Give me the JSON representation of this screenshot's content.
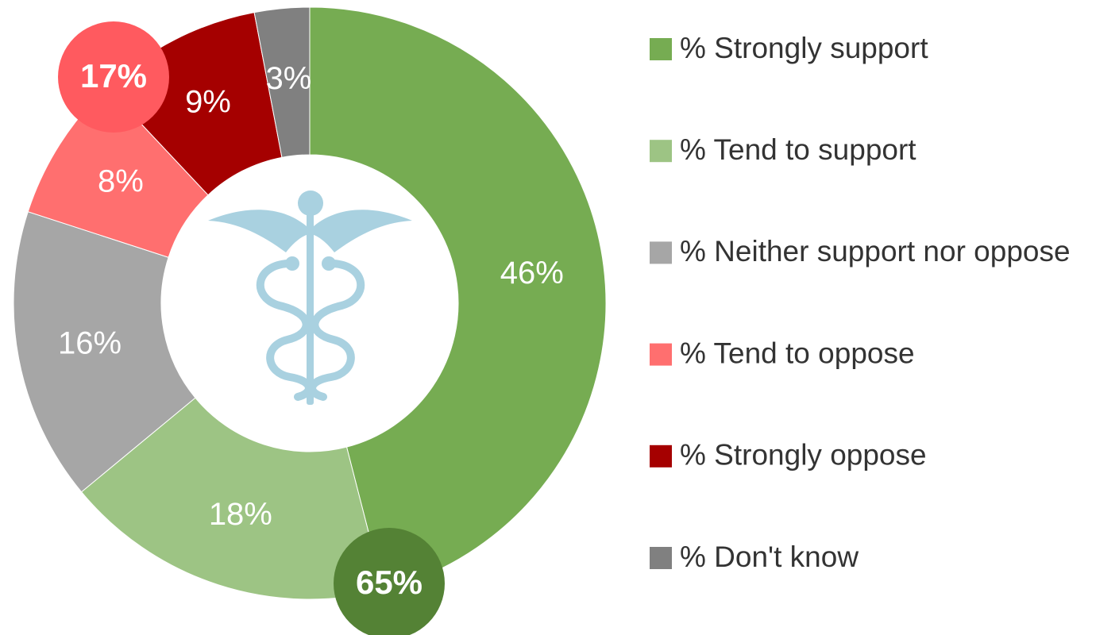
{
  "chart_data": {
    "type": "pie",
    "donut": true,
    "categories": [
      "% Strongly support",
      "% Tend to support",
      "% Neither support nor oppose",
      "% Tend to oppose",
      "% Strongly oppose",
      "% Don't know"
    ],
    "values": [
      46,
      18,
      16,
      8,
      9,
      3
    ],
    "value_labels": [
      "46%",
      "18%",
      "16%",
      "8%",
      "9%",
      "3%"
    ],
    "colors": [
      "#76ac52",
      "#9dc484",
      "#a6a6a6",
      "#ff6f6f",
      "#a50000",
      "#808080"
    ],
    "annotations": [
      {
        "value": 65,
        "label": "65%",
        "color": "#548235"
      },
      {
        "value": 17,
        "label": "17%",
        "color": "#ff5a5f"
      }
    ],
    "legend": "right"
  }
}
